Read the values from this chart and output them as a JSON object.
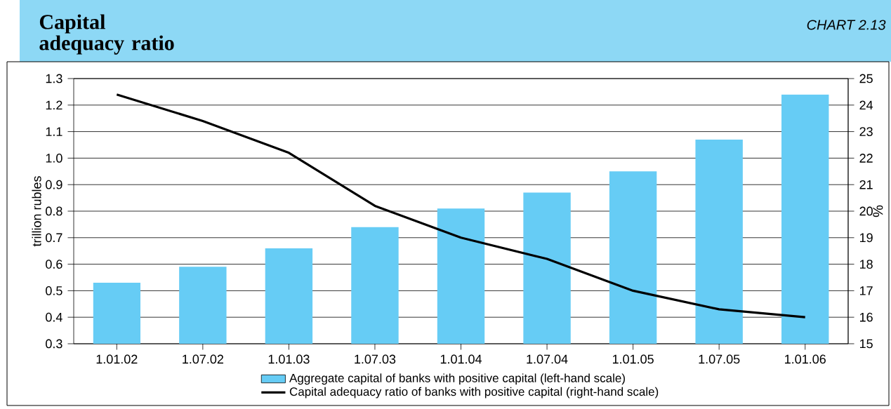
{
  "chart_data": {
    "type": "bar",
    "title": "Capital adequacy ratio",
    "ylabel": "trillion rubles",
    "y2label": "%",
    "annotations": [
      "CHART 2.13"
    ],
    "categories": [
      "1.01.02",
      "1.07.02",
      "1.01.03",
      "1.07.03",
      "1.01.04",
      "1.07.04",
      "1.01.05",
      "1.07.05",
      "1.01.06"
    ],
    "series": [
      {
        "name": "Aggregate capital of banks with positive capital (left-hand scale)",
        "color": "#66ccf5",
        "values": [
          0.53,
          0.59,
          0.66,
          0.74,
          0.81,
          0.87,
          0.95,
          1.07,
          1.24
        ]
      },
      {
        "name": "Capital adequacy ratio of banks with positive capital (right-hand scale)",
        "type": "line",
        "axis": "y2",
        "color": "#000000",
        "values": [
          24.4,
          23.4,
          22.2,
          20.2,
          19.0,
          18.2,
          17.0,
          16.3,
          16.0
        ]
      }
    ],
    "ylim": [
      0.3,
      1.3
    ],
    "yticks": [
      0.3,
      0.4,
      0.5,
      0.6,
      0.7,
      0.8,
      0.9,
      {
        "value": 1,
        "label": "1.0"
      },
      1.1,
      1.2,
      1.3
    ],
    "y2lim": [
      15,
      25
    ],
    "y2ticks": [
      15,
      16,
      17,
      18,
      19,
      20,
      21,
      22,
      23,
      24,
      25
    ],
    "grid": "y",
    "legend": "bottom",
    "marker": "none"
  }
}
